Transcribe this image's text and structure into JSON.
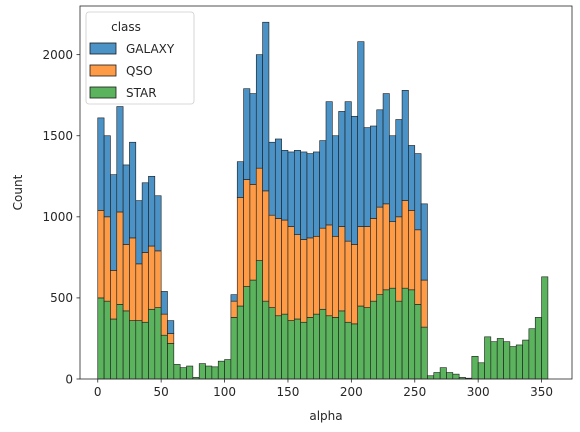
{
  "chart_data": {
    "type": "bar",
    "stacked": true,
    "xlabel": "alpha",
    "ylabel": "Count",
    "xlim": [
      -14,
      374
    ],
    "ylim": [
      0,
      2300
    ],
    "xticks": [
      0,
      50,
      100,
      150,
      200,
      250,
      300,
      350
    ],
    "yticks": [
      0,
      500,
      1000,
      1500,
      2000
    ],
    "grid": false,
    "legend_title": "class",
    "legend_position": "top-left",
    "bin_edges": [
      0,
      5,
      10,
      15,
      20,
      25,
      30,
      35,
      40,
      45,
      50,
      55,
      60,
      65,
      70,
      75,
      80,
      85,
      90,
      95,
      100,
      105,
      110,
      115,
      120,
      125,
      130,
      135,
      140,
      145,
      150,
      155,
      160,
      165,
      170,
      175,
      180,
      185,
      190,
      195,
      200,
      205,
      210,
      215,
      220,
      225,
      230,
      235,
      240,
      245,
      250,
      255,
      260,
      265,
      270,
      275,
      280,
      285,
      290,
      295,
      300,
      305,
      310,
      315,
      320,
      325,
      330,
      335,
      340,
      345,
      350,
      355,
      360
    ],
    "series": [
      {
        "name": "STAR",
        "color": "#5bb35d",
        "values": [
          500,
          480,
          370,
          460,
          420,
          360,
          360,
          350,
          430,
          440,
          270,
          220,
          90,
          70,
          80,
          10,
          95,
          80,
          75,
          110,
          120,
          380,
          450,
          570,
          610,
          730,
          480,
          440,
          390,
          400,
          360,
          370,
          350,
          380,
          400,
          430,
          390,
          380,
          420,
          350,
          340,
          450,
          440,
          480,
          520,
          550,
          560,
          480,
          560,
          550,
          460,
          320,
          20,
          40,
          70,
          40,
          30,
          10,
          5,
          140,
          100,
          260,
          230,
          250,
          230,
          200,
          210,
          240,
          310,
          380,
          630,
          0
        ]
      },
      {
        "name": "QSO",
        "color": "#fd9b46",
        "values": [
          540,
          520,
          300,
          570,
          410,
          510,
          350,
          430,
          390,
          350,
          130,
          60,
          0,
          0,
          0,
          0,
          0,
          0,
          0,
          0,
          0,
          100,
          670,
          660,
          590,
          570,
          680,
          570,
          600,
          580,
          580,
          520,
          510,
          490,
          480,
          500,
          560,
          500,
          520,
          500,
          490,
          490,
          500,
          510,
          540,
          530,
          410,
          520,
          540,
          490,
          460,
          290,
          0,
          0,
          0,
          0,
          0,
          0,
          0,
          0,
          0,
          0,
          0,
          0,
          0,
          0,
          0,
          0,
          0,
          0,
          0,
          0
        ]
      },
      {
        "name": "GALAXY",
        "color": "#4b93c6",
        "values": [
          570,
          500,
          590,
          650,
          490,
          590,
          390,
          430,
          430,
          340,
          140,
          80,
          0,
          0,
          0,
          0,
          0,
          0,
          0,
          0,
          0,
          40,
          220,
          560,
          560,
          700,
          1040,
          450,
          490,
          430,
          460,
          520,
          540,
          520,
          520,
          540,
          760,
          620,
          710,
          860,
          790,
          1140,
          610,
          570,
          600,
          680,
          530,
          600,
          680,
          400,
          470,
          470,
          0,
          0,
          0,
          0,
          0,
          0,
          0,
          0,
          0,
          0,
          0,
          0,
          0,
          0,
          0,
          0,
          0,
          0,
          0,
          0
        ]
      }
    ]
  }
}
